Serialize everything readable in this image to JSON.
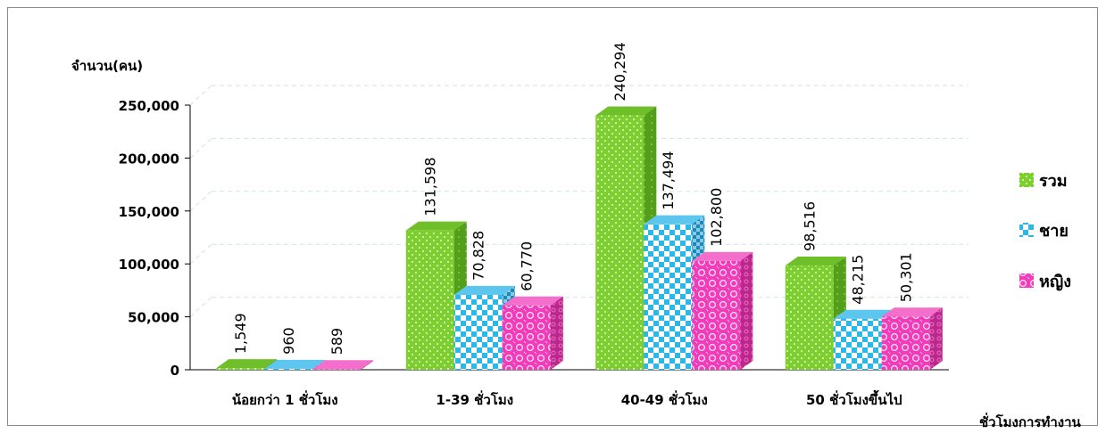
{
  "chart_data": {
    "type": "bar",
    "ylabel": "จำนวน(คน)",
    "xlabel": "ชั่วโมงการทำงาน",
    "categories": [
      "น้อยกว่า 1 ชั่วโมง",
      "1-39 ชั่วโมง",
      "40-49 ชั่วโมง",
      "50 ชั่วโมงขึ้นไป"
    ],
    "series": [
      {
        "name": "รวม",
        "values": [
          1549,
          131598,
          240294,
          98516
        ],
        "labels": [
          "1,549",
          "131,598",
          "240,294",
          "98,516"
        ],
        "color": "#7ccf2e",
        "pattern": "dots"
      },
      {
        "name": "ชาย",
        "values": [
          960,
          70828,
          137494,
          48215
        ],
        "labels": [
          "960",
          "70,828",
          "137,494",
          "48,215"
        ],
        "color": "#2bb7e8",
        "pattern": "checker"
      },
      {
        "name": "หญิง",
        "values": [
          589,
          60770,
          102800,
          50301
        ],
        "labels": [
          "589",
          "60,770",
          "102,800",
          "50,301"
        ],
        "color": "#f03cb8",
        "pattern": "circles"
      }
    ],
    "ylim": [
      0,
      250000
    ],
    "yticks": [
      0,
      50000,
      100000,
      150000,
      200000,
      250000
    ],
    "ytick_labels": [
      "0",
      "50,000",
      "100,000",
      "150,000",
      "200,000",
      "250,000"
    ],
    "grid": true,
    "legend": "right"
  }
}
